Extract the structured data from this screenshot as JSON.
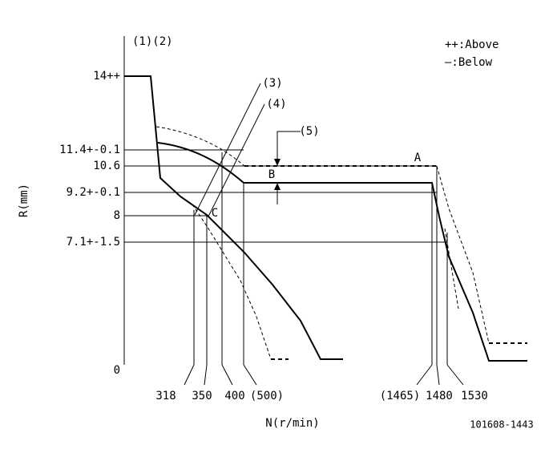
{
  "diagram": {
    "header": "(1)(2)",
    "legend": [
      "++:Above",
      "—:Below"
    ],
    "y_labels": [
      "14++",
      "11.4+-0.1",
      "10.6",
      "9.2+-0.1",
      "8",
      "7.1+-1.5",
      "0"
    ],
    "x_labels": [
      "318",
      "350",
      "400",
      "(500)",
      "(1465)",
      "1480",
      "1530"
    ],
    "callouts": [
      "(3)",
      "(4)",
      "(5)"
    ],
    "points": [
      "A",
      "B",
      "C"
    ],
    "y_axis_title": "R(mm)",
    "x_axis_title": "N(r/min)",
    "code": "101608-1443"
  }
}
